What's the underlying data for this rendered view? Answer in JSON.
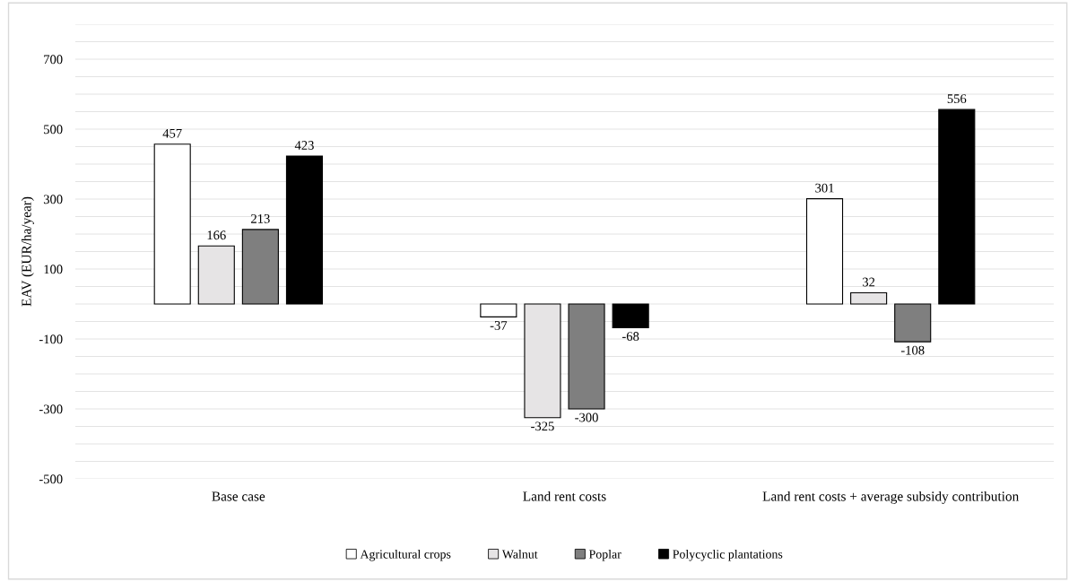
{
  "chart_data": {
    "type": "bar",
    "ylabel": "EAV (EUR/ha/year)",
    "categories": [
      "Base case",
      "Land rent costs",
      "Land rent costs + average subsidy contribution"
    ],
    "series": [
      {
        "name": "Agricultural crops",
        "color": "#ffffff",
        "values": [
          457,
          -37,
          301
        ]
      },
      {
        "name": "Walnut",
        "color": "#e6e4e5",
        "values": [
          166,
          -325,
          32
        ]
      },
      {
        "name": "Poplar",
        "color": "#7f7f7f",
        "values": [
          213,
          -300,
          -108
        ]
      },
      {
        "name": "Polycyclic plantations",
        "color": "#000000",
        "values": [
          423,
          -68,
          556
        ]
      }
    ],
    "ylim": [
      -500,
      800
    ],
    "yticks": [
      -500,
      {
        "value": -450,
        "label": null
      },
      {
        "value": -400,
        "label": null
      },
      {
        "value": -350,
        "label": null
      },
      -300,
      {
        "value": -250,
        "label": null
      },
      {
        "value": -200,
        "label": null
      },
      {
        "value": -150,
        "label": null
      },
      -100,
      {
        "value": -50,
        "label": null
      },
      {
        "value": 0,
        "label": null
      },
      {
        "value": 50,
        "label": null
      },
      100,
      {
        "value": 150,
        "label": null
      },
      {
        "value": 200,
        "label": null
      },
      {
        "value": 250,
        "label": null
      },
      300,
      {
        "value": 350,
        "label": null
      },
      {
        "value": 400,
        "label": null
      },
      {
        "value": 450,
        "label": null
      },
      500,
      {
        "value": 550,
        "label": null
      },
      {
        "value": 600,
        "label": null
      },
      {
        "value": 650,
        "label": null
      },
      700,
      {
        "value": 750,
        "label": null
      },
      {
        "value": 800,
        "label": null
      }
    ],
    "grid": "y",
    "data_labels": true,
    "legend": "bottom"
  }
}
